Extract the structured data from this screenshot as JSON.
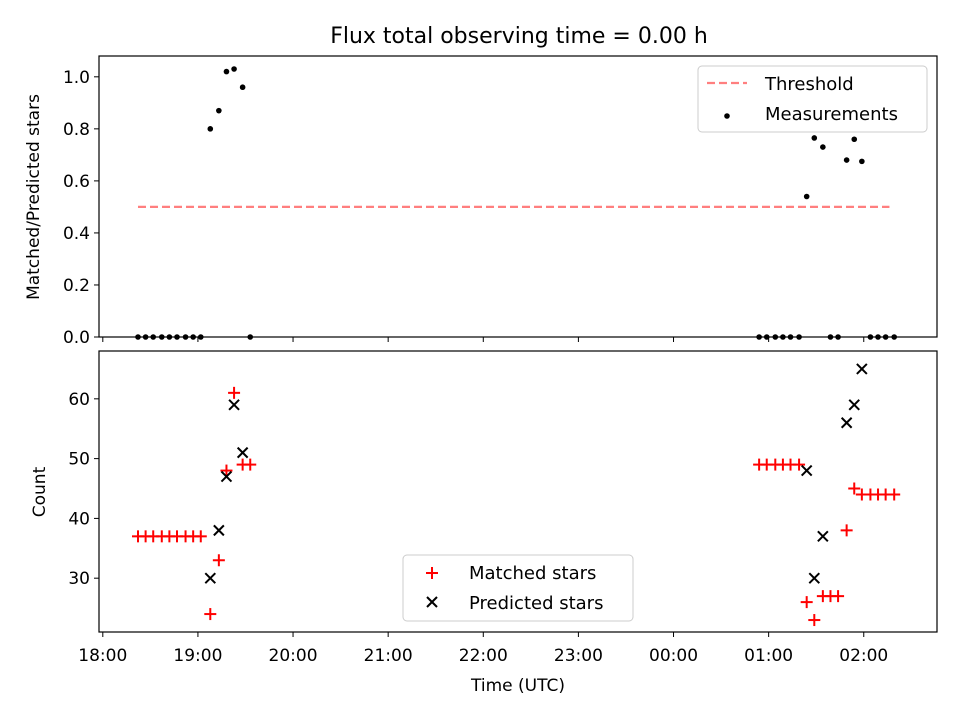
{
  "chart_data": {
    "type": "scatter",
    "title": "Flux total observing time = 0.00 h",
    "xlabel": "Time (UTC)",
    "x_domain_hours": [
      17.96,
      26.77
    ],
    "x_ticks": [
      {
        "value": 18,
        "label": "18:00"
      },
      {
        "value": 19,
        "label": "19:00"
      },
      {
        "value": 20,
        "label": "20:00"
      },
      {
        "value": 21,
        "label": "21:00"
      },
      {
        "value": 22,
        "label": "22:00"
      },
      {
        "value": 23,
        "label": "23:00"
      },
      {
        "value": 24,
        "label": "00:00"
      },
      {
        "value": 25,
        "label": "01:00"
      },
      {
        "value": 26,
        "label": "02:00"
      }
    ],
    "panels": [
      {
        "ylabel": "Matched/Predicted stars",
        "ylim": [
          0,
          1.08
        ],
        "y_ticks": [
          {
            "value": 0.0,
            "label": "0.0"
          },
          {
            "value": 0.2,
            "label": "0.2"
          },
          {
            "value": 0.4,
            "label": "0.4"
          },
          {
            "value": 0.6,
            "label": "0.6"
          },
          {
            "value": 0.8,
            "label": "0.8"
          },
          {
            "value": 1.0,
            "label": "1.0"
          }
        ],
        "legend_position": "top-right",
        "threshold": {
          "name": "Threshold",
          "value": 0.5,
          "x_range": [
            18.37,
            26.27
          ],
          "color": "#ff7f7f"
        },
        "series": [
          {
            "name": "Measurements",
            "marker": "dot",
            "color": "#000000",
            "points": [
              [
                18.37,
                0.0
              ],
              [
                18.45,
                0.0
              ],
              [
                18.53,
                0.0
              ],
              [
                18.62,
                0.0
              ],
              [
                18.7,
                0.0
              ],
              [
                18.78,
                0.0
              ],
              [
                18.87,
                0.0
              ],
              [
                18.95,
                0.0
              ],
              [
                19.03,
                0.0
              ],
              [
                19.13,
                0.8
              ],
              [
                19.22,
                0.87
              ],
              [
                19.3,
                1.02
              ],
              [
                19.38,
                1.03
              ],
              [
                19.47,
                0.96
              ],
              [
                19.55,
                0.0
              ],
              [
                24.9,
                0.0
              ],
              [
                24.98,
                0.0
              ],
              [
                25.07,
                0.0
              ],
              [
                25.15,
                0.0
              ],
              [
                25.23,
                0.0
              ],
              [
                25.32,
                0.0
              ],
              [
                25.4,
                0.54
              ],
              [
                25.48,
                0.765
              ],
              [
                25.57,
                0.73
              ],
              [
                25.65,
                0.0
              ],
              [
                25.73,
                0.0
              ],
              [
                25.82,
                0.68
              ],
              [
                25.9,
                0.76
              ],
              [
                25.98,
                0.675
              ],
              [
                26.07,
                0.0
              ],
              [
                26.15,
                0.0
              ],
              [
                26.23,
                0.0
              ],
              [
                26.32,
                0.0
              ]
            ]
          }
        ]
      },
      {
        "ylabel": "Count",
        "ylim": [
          21,
          68
        ],
        "y_ticks": [
          {
            "value": 30,
            "label": "30"
          },
          {
            "value": 40,
            "label": "40"
          },
          {
            "value": 50,
            "label": "50"
          },
          {
            "value": 60,
            "label": "60"
          }
        ],
        "legend_position": "lower-center",
        "series": [
          {
            "name": "Matched stars",
            "marker": "plus",
            "color": "#ff0000",
            "points": [
              [
                18.37,
                37
              ],
              [
                18.45,
                37
              ],
              [
                18.53,
                37
              ],
              [
                18.62,
                37
              ],
              [
                18.7,
                37
              ],
              [
                18.78,
                37
              ],
              [
                18.87,
                37
              ],
              [
                18.95,
                37
              ],
              [
                19.03,
                37
              ],
              [
                19.13,
                24
              ],
              [
                19.22,
                33
              ],
              [
                19.3,
                48
              ],
              [
                19.38,
                61
              ],
              [
                19.47,
                49
              ],
              [
                19.55,
                49
              ],
              [
                24.9,
                49
              ],
              [
                24.98,
                49
              ],
              [
                25.07,
                49
              ],
              [
                25.15,
                49
              ],
              [
                25.23,
                49
              ],
              [
                25.32,
                49
              ],
              [
                25.4,
                26
              ],
              [
                25.48,
                23
              ],
              [
                25.57,
                27
              ],
              [
                25.65,
                27
              ],
              [
                25.73,
                27
              ],
              [
                25.82,
                38
              ],
              [
                25.9,
                45
              ],
              [
                25.98,
                44
              ],
              [
                26.07,
                44
              ],
              [
                26.15,
                44
              ],
              [
                26.23,
                44
              ],
              [
                26.32,
                44
              ]
            ]
          },
          {
            "name": "Predicted stars",
            "marker": "x",
            "color": "#000000",
            "points": [
              [
                19.13,
                30
              ],
              [
                19.22,
                38
              ],
              [
                19.3,
                47
              ],
              [
                19.38,
                59
              ],
              [
                19.47,
                51
              ],
              [
                25.4,
                48
              ],
              [
                25.48,
                30
              ],
              [
                25.57,
                37
              ],
              [
                25.82,
                56
              ],
              [
                25.9,
                59
              ],
              [
                25.98,
                65
              ]
            ]
          }
        ]
      }
    ]
  }
}
